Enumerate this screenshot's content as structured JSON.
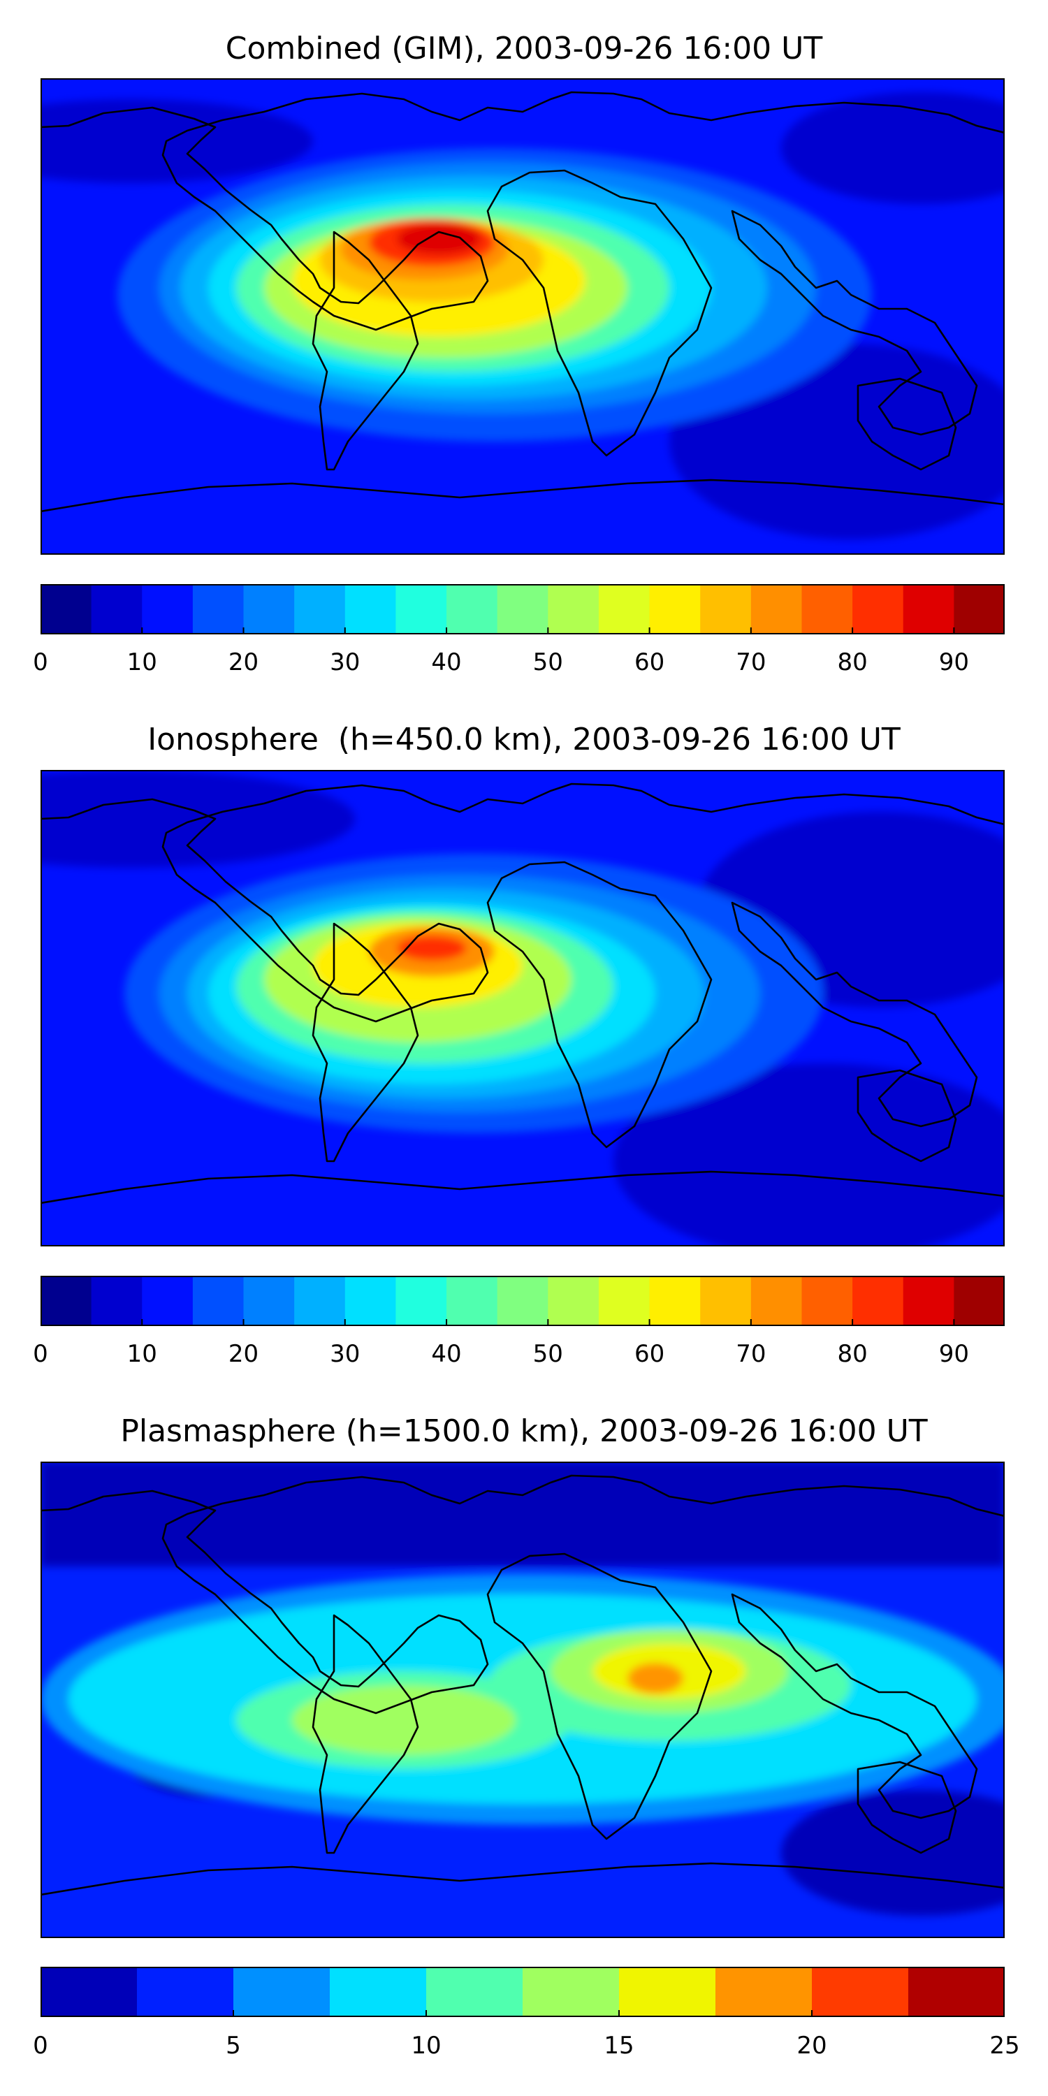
{
  "panels": [
    {
      "title": "Combined (GIM), 2003-09-26 16:00 UT",
      "colorbar": {
        "min": 0,
        "max": 95,
        "step": 5,
        "ticks": [
          0,
          10,
          20,
          30,
          40,
          50,
          60,
          70,
          80,
          90
        ],
        "tick_labels": [
          "0",
          "10",
          "20",
          "30",
          "40",
          "50",
          "60",
          "70",
          "80",
          "90"
        ]
      }
    },
    {
      "title": "Ionosphere  (h=450.0 km), 2003-09-26 16:00 UT",
      "colorbar": {
        "min": 0,
        "max": 95,
        "step": 5,
        "ticks": [
          0,
          10,
          20,
          30,
          40,
          50,
          60,
          70,
          80,
          90
        ],
        "tick_labels": [
          "0",
          "10",
          "20",
          "30",
          "40",
          "50",
          "60",
          "70",
          "80",
          "90"
        ]
      }
    },
    {
      "title": "Plasmasphere (h=1500.0 km), 2003-09-26 16:00 UT",
      "colorbar": {
        "min": 0,
        "max": 25,
        "step": 2.5,
        "ticks": [
          0,
          5,
          10,
          15,
          20,
          25
        ],
        "tick_labels": [
          "0",
          "5",
          "10",
          "15",
          "20",
          "25"
        ]
      }
    }
  ],
  "colors": {
    "scale_19": [
      "#00008f",
      "#0000cf",
      "#0010ff",
      "#0050ff",
      "#0080ff",
      "#00b0ff",
      "#00e0ff",
      "#20ffdf",
      "#50ffaf",
      "#80ff80",
      "#b0ff50",
      "#dfff20",
      "#ffef00",
      "#ffbf00",
      "#ff8f00",
      "#ff6000",
      "#ff2f00",
      "#df0000",
      "#9f0000"
    ],
    "scale_10": [
      "#0000b8",
      "#0020ff",
      "#0090ff",
      "#00e0ff",
      "#50ffaf",
      "#a0ff60",
      "#f0f500",
      "#ff9400",
      "#ff3b00",
      "#b00000"
    ]
  }
}
